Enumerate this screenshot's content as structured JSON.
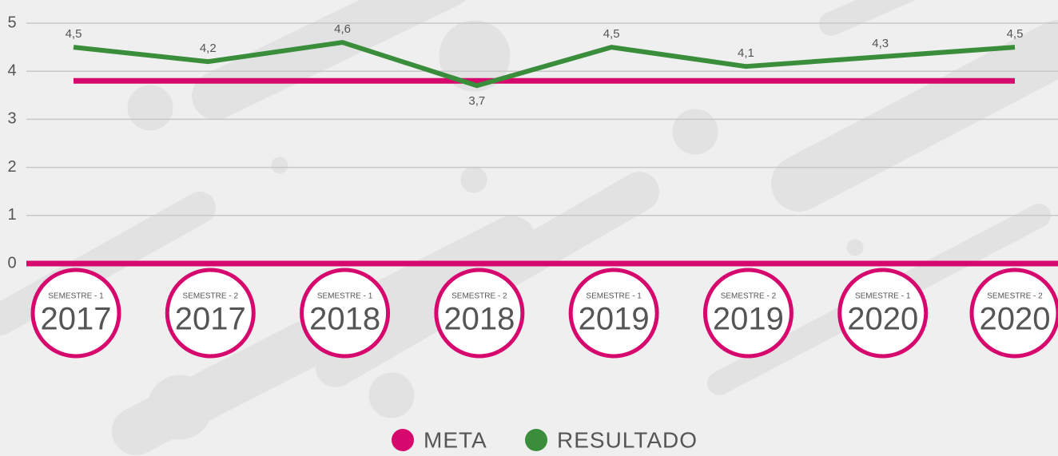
{
  "chart_data": {
    "type": "line",
    "categories": [
      {
        "semester": "SEMESTRE - 1",
        "year": "2017"
      },
      {
        "semester": "SEMESTRE - 2",
        "year": "2017"
      },
      {
        "semester": "SEMESTRE - 1",
        "year": "2018"
      },
      {
        "semester": "SEMESTRE - 2",
        "year": "2018"
      },
      {
        "semester": "SEMESTRE - 1",
        "year": "2019"
      },
      {
        "semester": "SEMESTRE - 2",
        "year": "2019"
      },
      {
        "semester": "SEMESTRE - 1",
        "year": "2020"
      },
      {
        "semester": "SEMESTRE - 2",
        "year": "2020"
      }
    ],
    "series": [
      {
        "name": "META",
        "color": "#d6086e",
        "values": [
          3.8,
          3.8,
          3.8,
          3.8,
          3.8,
          3.8,
          3.8,
          3.8
        ]
      },
      {
        "name": "RESULTADO",
        "color": "#3a8d3a",
        "values": [
          4.5,
          4.2,
          4.6,
          3.7,
          4.5,
          4.1,
          4.3,
          4.5
        ],
        "value_labels": [
          "4,5",
          "4,2",
          "4,6",
          "3,7",
          "4,5",
          "4,1",
          "4,3",
          "4,5"
        ]
      }
    ],
    "ylim": [
      0,
      5
    ],
    "yticks": [
      0,
      1,
      2,
      3,
      4,
      5
    ],
    "grid": true
  }
}
